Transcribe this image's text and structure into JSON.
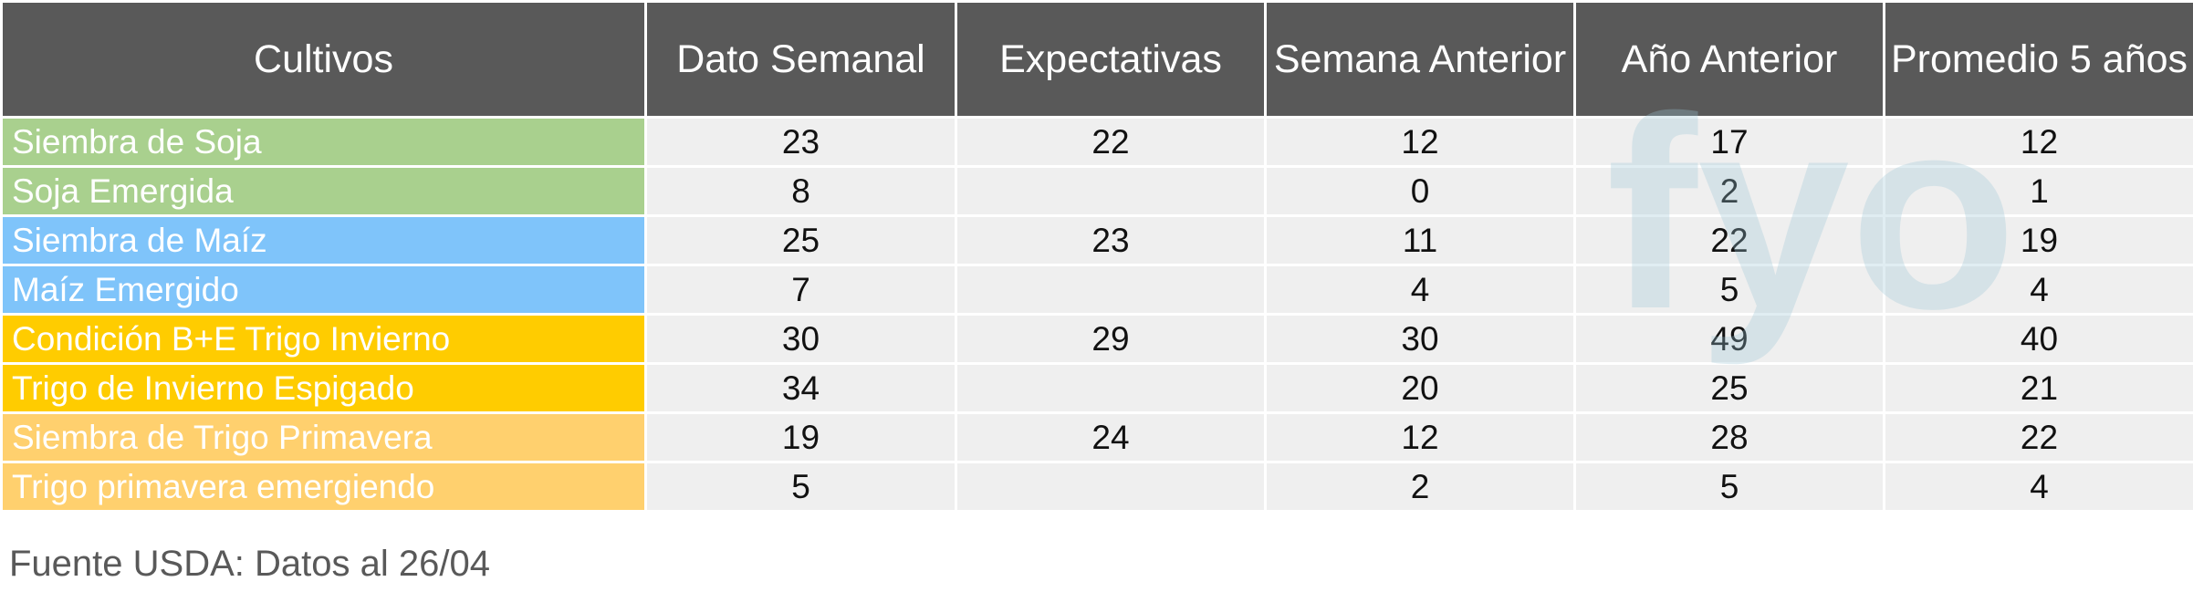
{
  "table": {
    "columns": [
      "Cultivos",
      "Dato Semanal",
      "Expectativas",
      "Semana Anterior",
      "Año Anterior",
      "Promedio 5 años"
    ],
    "rows": [
      [
        "Siembra de Soja",
        23,
        22,
        12,
        17,
        12
      ],
      [
        "Soja Emergida",
        8,
        null,
        0,
        2,
        1
      ],
      [
        "Siembra de Maíz",
        25,
        23,
        11,
        22,
        19
      ],
      [
        "Maíz Emergido",
        7,
        null,
        4,
        5,
        4
      ],
      [
        "Condición B+E Trigo Invierno",
        30,
        29,
        30,
        49,
        40
      ],
      [
        "Trigo de Invierno Espigado",
        34,
        null,
        20,
        25,
        21
      ],
      [
        "Siembra de Trigo Primavera",
        19,
        24,
        12,
        28,
        22
      ],
      [
        "Trigo primavera emergiendo",
        5,
        null,
        2,
        5,
        4
      ]
    ]
  },
  "watermark": "fyo",
  "footer": "Fuente USDA: Datos al 26/04"
}
